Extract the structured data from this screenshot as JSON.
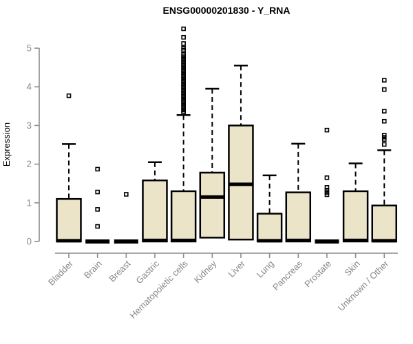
{
  "chart_data": {
    "type": "boxplot",
    "title": "ENSG00000201830 - Y_RNA",
    "ylabel": "Expression",
    "xlabel": "",
    "y_ticks": [
      0,
      1,
      2,
      3,
      4,
      5
    ],
    "ylim": [
      -0.3,
      5.6
    ],
    "grid": false,
    "legend": "none",
    "categories": [
      "Bladder",
      "Brain",
      "Breast",
      "Gastric",
      "Hematopoietic cells",
      "Kidney",
      "Liver",
      "Lung",
      "Pancreas",
      "Prostate",
      "Skin",
      "Unknown / Other"
    ],
    "series": [
      {
        "name": "Bladder",
        "low": 0,
        "q1": 0,
        "median": 0.02,
        "q3": 1.1,
        "high": 2.52,
        "outliers": [
          3.77
        ]
      },
      {
        "name": "Brain",
        "low": 0,
        "q1": 0,
        "median": 0,
        "q3": 0,
        "high": 0,
        "outliers": [
          1.87,
          1.28,
          0.83,
          0.39
        ]
      },
      {
        "name": "Breast",
        "low": 0,
        "q1": 0,
        "median": 0,
        "q3": 0,
        "high": 0,
        "outliers": [
          1.22
        ]
      },
      {
        "name": "Gastric",
        "low": 0,
        "q1": 0,
        "median": 0.03,
        "q3": 1.58,
        "high": 2.05,
        "outliers": []
      },
      {
        "name": "Hematopoietic cells",
        "low": 0,
        "q1": 0,
        "median": 0.03,
        "q3": 1.3,
        "high": 3.27,
        "outliers": [
          3.32,
          3.36,
          3.4,
          3.44,
          3.48,
          3.52,
          3.56,
          3.6,
          3.64,
          3.68,
          3.72,
          3.76,
          3.8,
          3.84,
          3.88,
          3.92,
          3.96,
          4,
          4.04,
          4.08,
          4.12,
          4.16,
          4.2,
          4.24,
          4.28,
          4.32,
          4.36,
          4.4,
          4.44,
          4.48,
          4.52,
          4.56,
          4.6,
          4.64,
          4.68,
          4.72,
          4.76,
          4.8,
          4.84,
          4.95,
          5,
          5.12,
          5.28,
          5.5
        ]
      },
      {
        "name": "Kidney",
        "low": 0.1,
        "q1": 0.1,
        "median": 1.15,
        "q3": 1.78,
        "high": 3.95,
        "outliers": []
      },
      {
        "name": "Liver",
        "low": 0.05,
        "q1": 0.05,
        "median": 1.48,
        "q3": 3.0,
        "high": 4.55,
        "outliers": []
      },
      {
        "name": "Lung",
        "low": 0,
        "q1": 0,
        "median": 0.02,
        "q3": 0.72,
        "high": 1.71,
        "outliers": []
      },
      {
        "name": "Pancreas",
        "low": 0,
        "q1": 0,
        "median": 0.03,
        "q3": 1.27,
        "high": 2.53,
        "outliers": []
      },
      {
        "name": "Prostate",
        "low": 0,
        "q1": 0,
        "median": 0,
        "q3": 0,
        "high": 0,
        "outliers": [
          2.88,
          1.65,
          1.4,
          1.33,
          1.27,
          1.21
        ]
      },
      {
        "name": "Skin",
        "low": 0,
        "q1": 0,
        "median": 0.03,
        "q3": 1.3,
        "high": 2.02,
        "outliers": []
      },
      {
        "name": "Unknown / Other",
        "low": 0,
        "q1": 0,
        "median": 0.02,
        "q3": 0.93,
        "high": 2.36,
        "outliers": [
          4.17,
          3.93,
          3.37,
          3.11,
          2.75,
          2.7,
          2.64,
          2.51
        ]
      }
    ],
    "colors": {
      "box_fill": "#ebe4c9",
      "box_border": "#000000",
      "whisker": "#000000",
      "outlier": "#000000",
      "axis": "#8c8c8c",
      "tick_label": "#8a8f96",
      "category_label": "#878787",
      "title": "#000000",
      "background": "#ffffff"
    }
  }
}
